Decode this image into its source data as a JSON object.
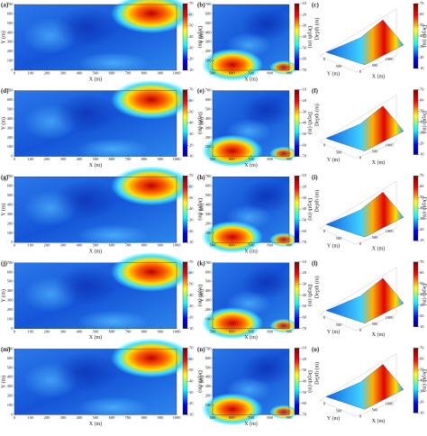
{
  "figure": {
    "x_label": "X (m)",
    "y_label": "Y (m)",
    "colorbar_label": "Depth (m)",
    "left": {
      "xlim": [
        0,
        1000
      ],
      "xticks": [
        0,
        100,
        200,
        300,
        400,
        500,
        600,
        700,
        800,
        900,
        1000
      ],
      "ylim": [
        0,
        700
      ],
      "yticks": [
        0,
        100,
        200,
        300,
        400,
        500,
        600,
        700
      ],
      "cblim": [
        10,
        70
      ],
      "cbticks": [
        10,
        20,
        30,
        40,
        50,
        60,
        70
      ]
    },
    "middle": {
      "xlim": [
        500,
        900
      ],
      "xticks": [
        500,
        600,
        700,
        800,
        900
      ],
      "ylim": [
        0,
        700
      ],
      "yticks": [
        100,
        200,
        300,
        400,
        500,
        600,
        700
      ],
      "cblim": [
        -70,
        -10
      ],
      "cbticks": [
        -70,
        -60,
        -50,
        -40,
        -30,
        -20,
        -10
      ]
    },
    "right": {
      "xticks": [
        0,
        500,
        1000
      ],
      "yticks": [
        0,
        500
      ],
      "cblim": [
        10,
        70
      ],
      "cbticks": [
        10,
        20,
        30,
        40,
        50,
        60,
        70
      ]
    }
  },
  "panels": [
    {
      "label": "(a)"
    },
    {
      "label": "(b)"
    },
    {
      "label": "(c)"
    },
    {
      "label": "(d)"
    },
    {
      "label": "(e)"
    },
    {
      "label": "(f)"
    },
    {
      "label": "(g)"
    },
    {
      "label": "(h)"
    },
    {
      "label": "(i)"
    },
    {
      "label": "(j)"
    },
    {
      "label": "(k)"
    },
    {
      "label": "(l)"
    },
    {
      "label": "(m)"
    },
    {
      "label": "(n)"
    },
    {
      "label": "(o)"
    }
  ]
}
